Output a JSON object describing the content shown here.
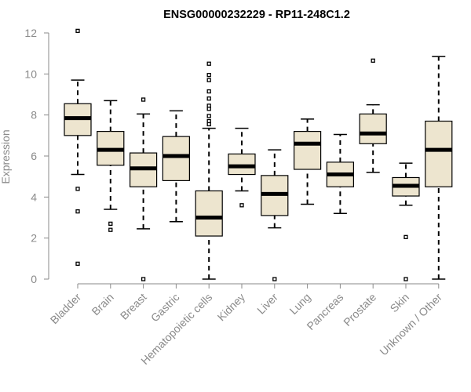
{
  "colors": {
    "box_fill": "#ede5cf",
    "box_stroke": "#000000",
    "median": "#000000",
    "axis": "#8a8a8a",
    "text": "#8a8a8a",
    "title": "#000000"
  },
  "chart_data": {
    "type": "boxplot",
    "title": "ENSG00000232229 - RP11-248C1.2",
    "xlabel": "",
    "ylabel": "Expression",
    "ylim": [
      0,
      12
    ],
    "yticks": [
      0,
      2,
      4,
      6,
      8,
      10,
      12
    ],
    "grid": false,
    "categories": [
      "Bladder",
      "Brain",
      "Breast",
      "Gastric",
      "Hematopoietic cells",
      "Kidney",
      "Liver",
      "Lung",
      "Pancreas",
      "Prostate",
      "Skin",
      "Unknown / Other"
    ],
    "boxes": [
      {
        "category": "Bladder",
        "whisker_low": 5.1,
        "q1": 7.0,
        "median": 7.85,
        "q3": 8.55,
        "whisker_high": 9.7,
        "outliers": [
          12.1,
          4.4,
          3.3,
          0.75
        ]
      },
      {
        "category": "Brain",
        "whisker_low": 3.4,
        "q1": 5.55,
        "median": 6.3,
        "q3": 7.2,
        "whisker_high": 8.7,
        "outliers": [
          2.7,
          2.4
        ]
      },
      {
        "category": "Breast",
        "whisker_low": 2.45,
        "q1": 4.5,
        "median": 5.4,
        "q3": 6.15,
        "whisker_high": 8.05,
        "outliers": [
          8.75,
          0.0
        ]
      },
      {
        "category": "Gastric",
        "whisker_low": 2.8,
        "q1": 4.8,
        "median": 6.0,
        "q3": 6.95,
        "whisker_high": 8.2,
        "outliers": []
      },
      {
        "category": "Hematopoietic cells",
        "whisker_low": 0.0,
        "q1": 2.1,
        "median": 3.0,
        "q3": 4.3,
        "whisker_high": 7.35,
        "outliers": [
          10.5,
          9.95,
          9.7,
          9.15,
          8.8,
          8.45,
          8.3,
          7.95,
          7.7,
          7.55
        ]
      },
      {
        "category": "Kidney",
        "whisker_low": 4.3,
        "q1": 5.1,
        "median": 5.5,
        "q3": 6.1,
        "whisker_high": 7.35,
        "outliers": [
          3.6
        ]
      },
      {
        "category": "Liver",
        "whisker_low": 2.5,
        "q1": 3.1,
        "median": 4.15,
        "q3": 5.05,
        "whisker_high": 6.3,
        "outliers": [
          0.0
        ]
      },
      {
        "category": "Lung",
        "whisker_low": 3.65,
        "q1": 5.35,
        "median": 6.6,
        "q3": 7.2,
        "whisker_high": 7.8,
        "outliers": []
      },
      {
        "category": "Pancreas",
        "whisker_low": 3.2,
        "q1": 4.5,
        "median": 5.1,
        "q3": 5.7,
        "whisker_high": 7.05,
        "outliers": []
      },
      {
        "category": "Prostate",
        "whisker_low": 5.2,
        "q1": 6.6,
        "median": 7.1,
        "q3": 8.05,
        "whisker_high": 8.5,
        "outliers": [
          10.65
        ]
      },
      {
        "category": "Skin",
        "whisker_low": 3.6,
        "q1": 4.05,
        "median": 4.55,
        "q3": 4.95,
        "whisker_high": 5.65,
        "outliers": [
          2.05,
          0.0
        ]
      },
      {
        "category": "Unknown / Other",
        "whisker_low": 0.0,
        "q1": 4.5,
        "median": 6.3,
        "q3": 7.7,
        "whisker_high": 10.85,
        "outliers": []
      }
    ]
  }
}
